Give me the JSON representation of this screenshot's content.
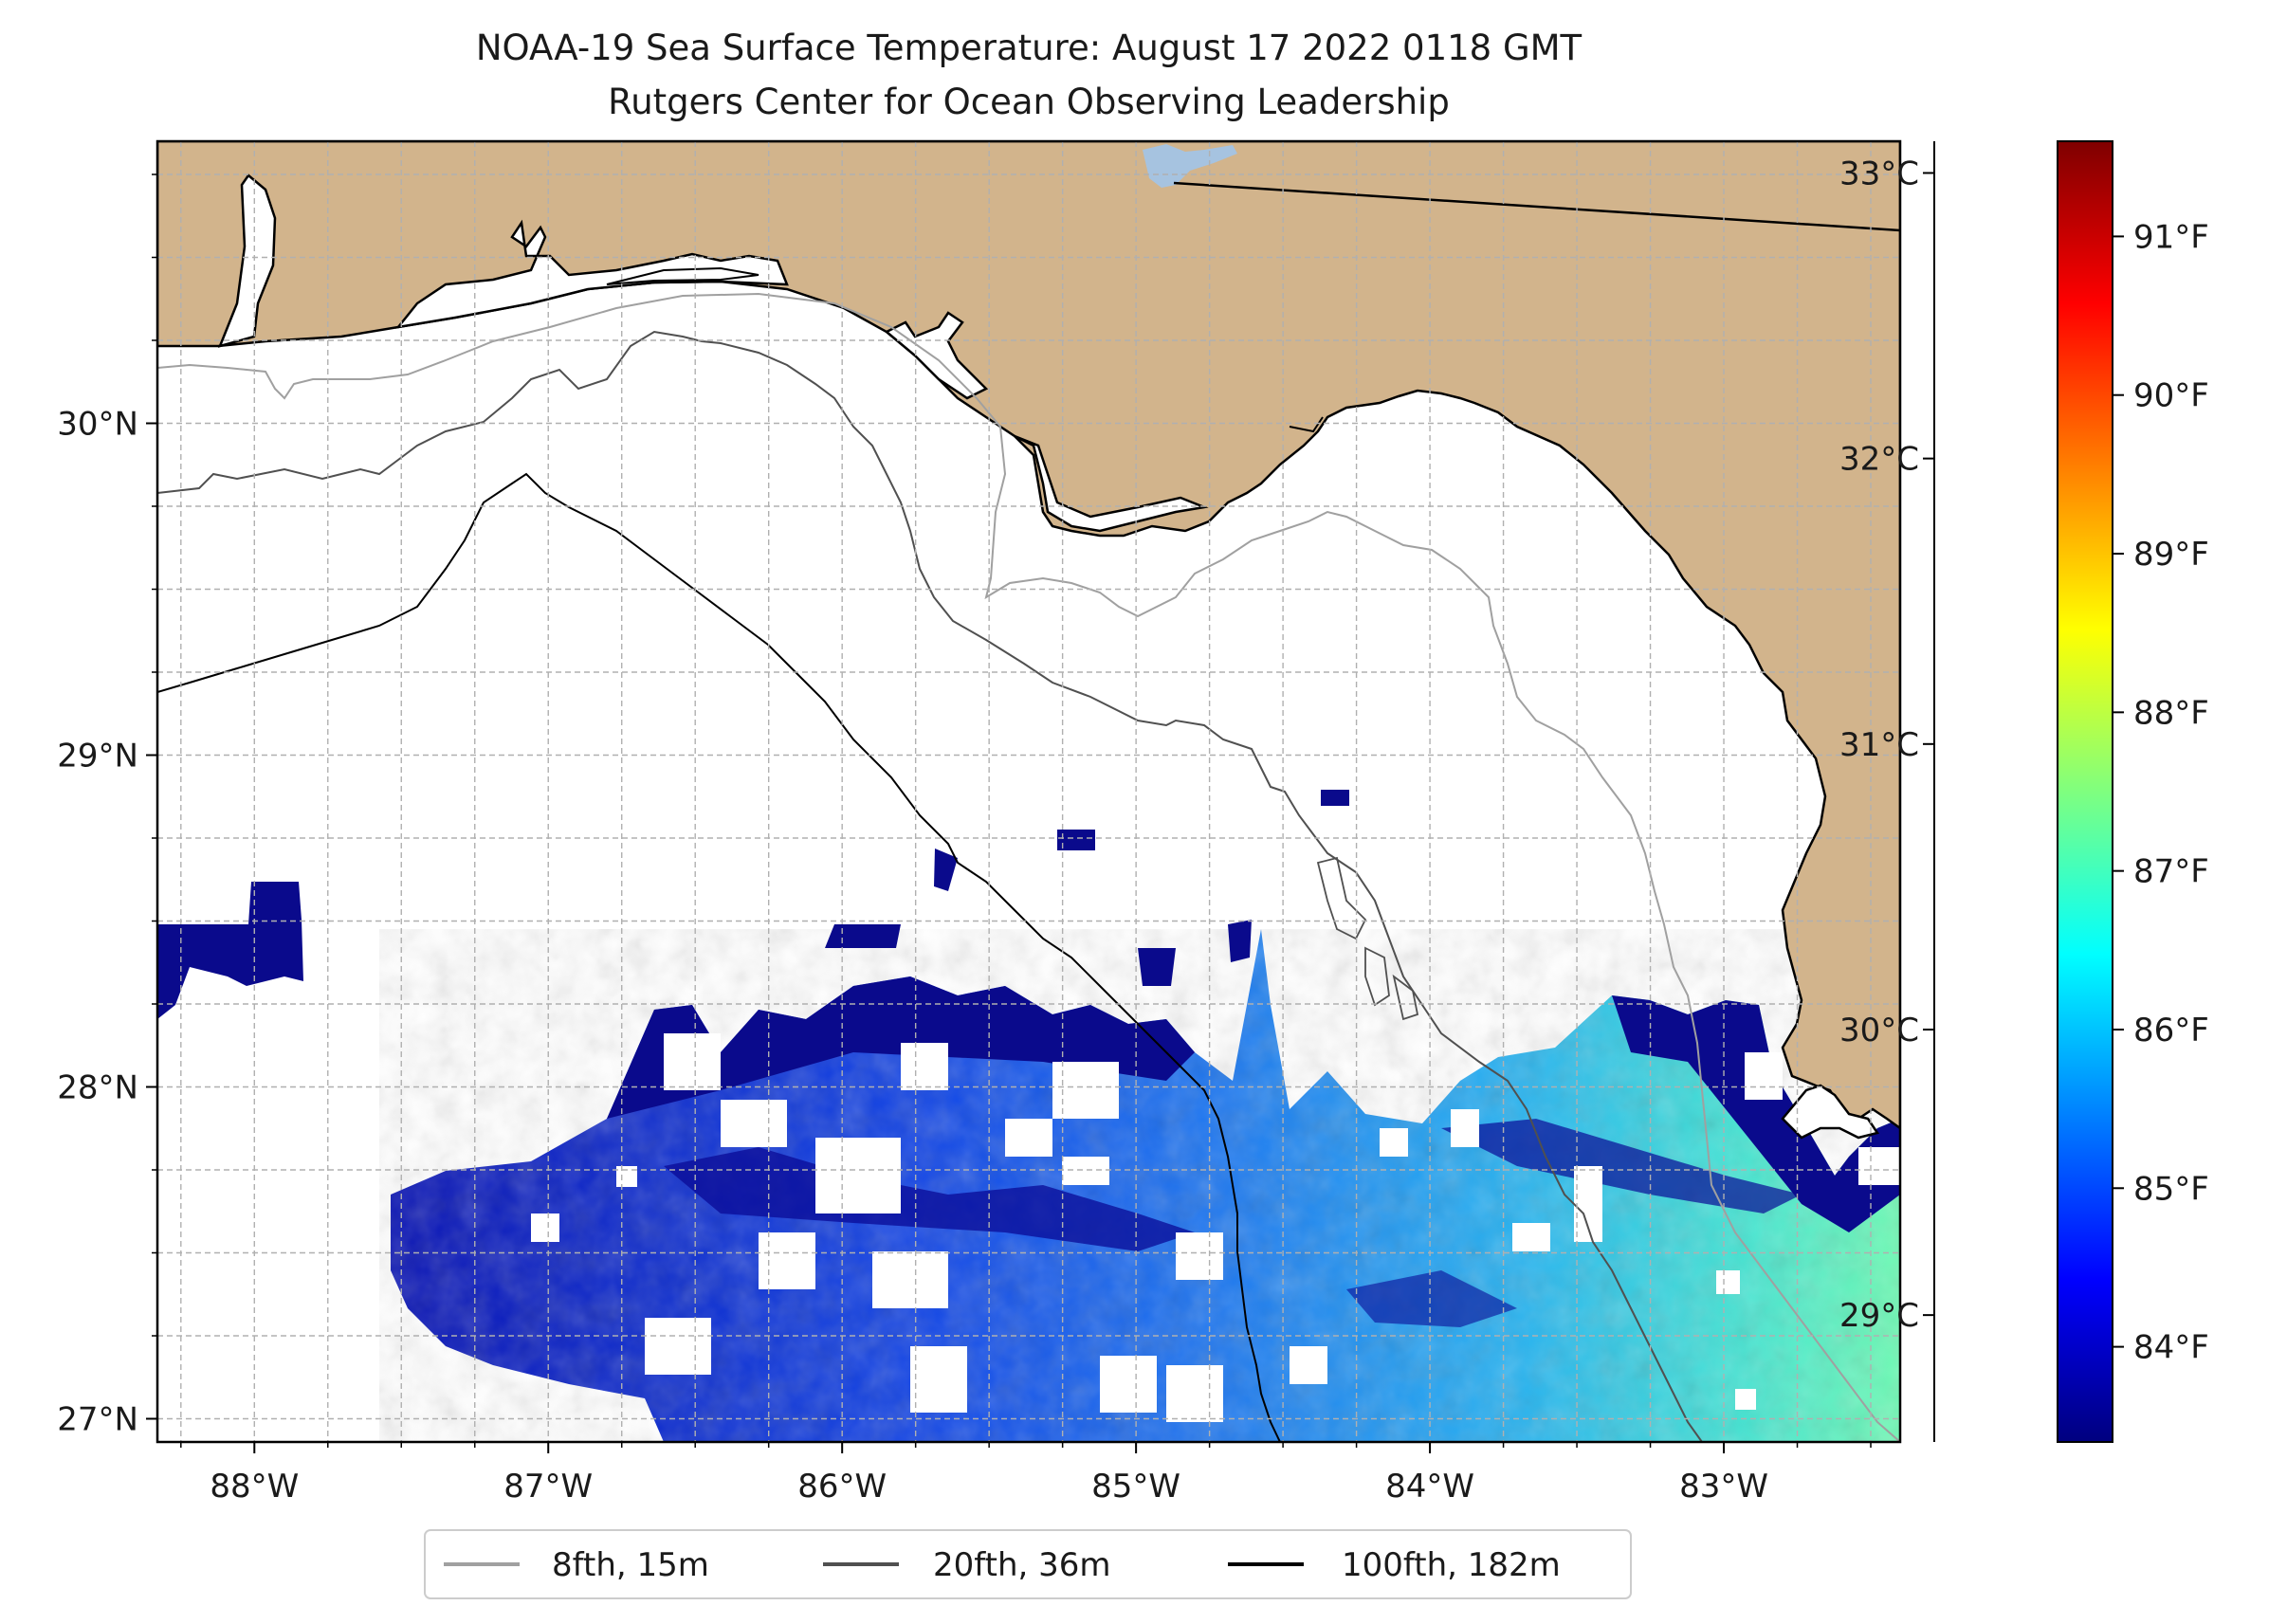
{
  "title": {
    "line1": "NOAA-19 Sea Surface Temperature: August 17 2022 0118 GMT",
    "line2": "Rutgers Center for Ocean Observing Leadership"
  },
  "map": {
    "lon_range": [
      -88.33,
      -82.4
    ],
    "lat_range": [
      26.93,
      30.85
    ],
    "x_ticks": [
      {
        "lon": -88,
        "label": "88°W"
      },
      {
        "lon": -87,
        "label": "87°W"
      },
      {
        "lon": -86,
        "label": "86°W"
      },
      {
        "lon": -85,
        "label": "85°W"
      },
      {
        "lon": -84,
        "label": "84°W"
      },
      {
        "lon": -83,
        "label": "83°W"
      }
    ],
    "y_ticks": [
      {
        "lat": 30,
        "label": "30°N"
      },
      {
        "lat": 29,
        "label": "29°N"
      },
      {
        "lat": 28,
        "label": "28°N"
      },
      {
        "lat": 27,
        "label": "27°N"
      }
    ],
    "colors": {
      "land": "#d2b48c",
      "lake": "#a6c3e0",
      "ocean_nodata": "#ffffff",
      "grid": "#b0b0b0"
    }
  },
  "legend": {
    "items": [
      {
        "label": "8fth, 15m",
        "color": "#a0a0a0"
      },
      {
        "label": "20fth, 36m",
        "color": "#505050"
      },
      {
        "label": "100fth, 182m",
        "color": "#000000"
      }
    ]
  },
  "colorbar": {
    "celsius": [
      {
        "value": 29,
        "label": "29°C"
      },
      {
        "value": 30,
        "label": "30°C"
      },
      {
        "value": 31,
        "label": "31°C"
      },
      {
        "value": 32,
        "label": "32°C"
      },
      {
        "value": 33,
        "label": "33°C"
      }
    ],
    "fahrenheit": [
      {
        "value": 84,
        "label": "84°F"
      },
      {
        "value": 85,
        "label": "85°F"
      },
      {
        "value": 86,
        "label": "86°F"
      },
      {
        "value": 87,
        "label": "87°F"
      },
      {
        "value": 88,
        "label": "88°F"
      },
      {
        "value": 89,
        "label": "89°F"
      },
      {
        "value": 90,
        "label": "90°F"
      },
      {
        "value": 91,
        "label": "91°F"
      }
    ],
    "range_f": [
      83.4,
      91.6
    ],
    "colormap": [
      "#00007f",
      "#0000ff",
      "#007fff",
      "#00ffff",
      "#7fff7f",
      "#ffff00",
      "#ff7f00",
      "#ff0000",
      "#7f0000"
    ]
  }
}
